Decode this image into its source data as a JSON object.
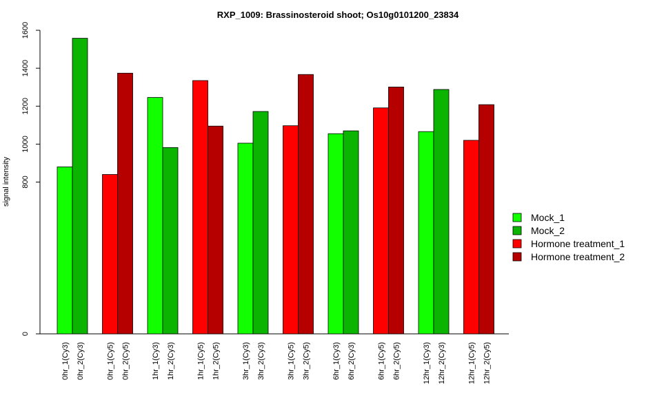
{
  "chart_data": {
    "type": "bar",
    "title": "RXP_1009: Brassinosteroid shoot; Os10g0101200_23834",
    "xlabel": "",
    "ylabel": "signal intensity",
    "y_ticks": [
      0,
      800,
      1000,
      1200,
      1400,
      1600
    ],
    "categories": [
      "0hr_1(Cy3)",
      "0hr_2(Cy3)",
      "0hr_1(Cy5)",
      "0hr_2(Cy5)",
      "1hr_1(Cy3)",
      "1hr_2(Cy3)",
      "1hr_1(Cy5)",
      "1hr_2(Cy5)",
      "3hr_1(Cy3)",
      "3hr_2(Cy3)",
      "3hr_1(Cy5)",
      "3hr_2(Cy5)",
      "6hr_1(Cy3)",
      "6hr_2(Cy3)",
      "6hr_1(Cy5)",
      "6hr_2(Cy5)",
      "12hr_1(Cy3)",
      "12hr_2(Cy3)",
      "12hr_1(Cy5)",
      "12hr_2(Cy5)"
    ],
    "values": [
      880,
      1558,
      840,
      1374,
      1246,
      982,
      1335,
      1095,
      1005,
      1172,
      1097,
      1367,
      1055,
      1070,
      1191,
      1301,
      1066,
      1288,
      1020,
      1208
    ],
    "bar_series": [
      0,
      1,
      2,
      3,
      0,
      1,
      2,
      3,
      0,
      1,
      2,
      3,
      0,
      1,
      2,
      3,
      0,
      1,
      2,
      3
    ],
    "series": [
      {
        "name": "Mock_1",
        "color": "#12ff00"
      },
      {
        "name": "Mock_2",
        "color": "#0bb400"
      },
      {
        "name": "Hormone treatment_1",
        "color": "#ff0000"
      },
      {
        "name": "Hormone treatment_2",
        "color": "#b60000"
      }
    ],
    "legend_position": "right",
    "grid": false
  }
}
